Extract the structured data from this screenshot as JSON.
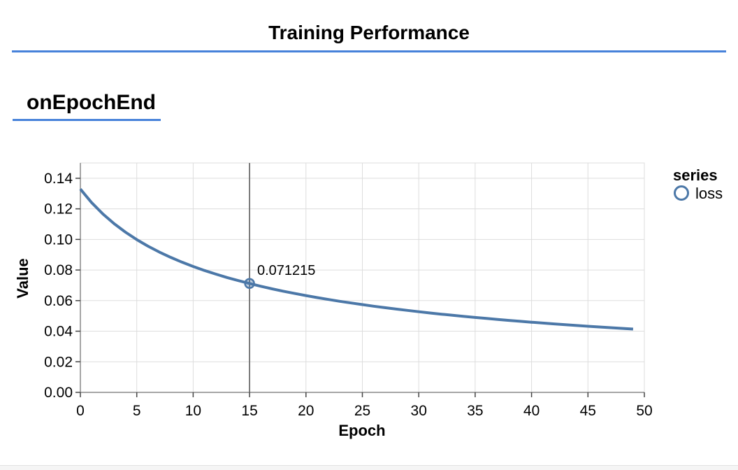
{
  "header": {
    "title": "Training Performance"
  },
  "section": {
    "title": "onEpochEnd"
  },
  "colors": {
    "accent_rule": "#4782da",
    "line": "#4c78a8",
    "grid": "#dddddd",
    "axis_domain": "#888888",
    "tick": "#444444",
    "crosshair": "#6e6e6e",
    "text": "#000000",
    "bottom_strip_bg": "#f5f5f5",
    "bottom_strip_border": "#e2e2e2"
  },
  "chart_data": {
    "type": "line",
    "title": "",
    "xlabel": "Epoch",
    "ylabel": "Value",
    "xlim": [
      0,
      50
    ],
    "ylim": [
      0,
      0.15
    ],
    "x_ticks": [
      0,
      5,
      10,
      15,
      20,
      25,
      30,
      35,
      40,
      45,
      50
    ],
    "y_ticks": [
      0,
      0.02,
      0.04,
      0.06,
      0.08,
      0.1,
      0.12,
      0.14
    ],
    "y_decimals": 2,
    "grid": true,
    "legend": {
      "title": "series",
      "position": "right",
      "entries": [
        {
          "label": "loss",
          "color": "#4c78a8",
          "symbol": "circle"
        }
      ]
    },
    "series": [
      {
        "name": "loss",
        "x": [
          0,
          1,
          2,
          3,
          4,
          5,
          6,
          7,
          8,
          9,
          10,
          11,
          12,
          13,
          14,
          15,
          16,
          17,
          18,
          19,
          20,
          21,
          22,
          23,
          24,
          25,
          26,
          27,
          28,
          29,
          30,
          31,
          32,
          33,
          34,
          35,
          36,
          37,
          38,
          39,
          40,
          41,
          42,
          43,
          44,
          45,
          46,
          47,
          48,
          49
        ],
        "values": [
          0.132953,
          0.124087,
          0.116618,
          0.110243,
          0.104711,
          0.099862,
          0.095573,
          0.091744,
          0.088292,
          0.085171,
          0.082318,
          0.079718,
          0.077331,
          0.075113,
          0.073058,
          0.071215,
          0.069371,
          0.067698,
          0.066142,
          0.064671,
          0.063283,
          0.061967,
          0.060731,
          0.059549,
          0.058437,
          0.057372,
          0.05636,
          0.055393,
          0.054466,
          0.05358,
          0.052737,
          0.051923,
          0.051146,
          0.050399,
          0.049681,
          0.048984,
          0.04832,
          0.047674,
          0.047052,
          0.04645,
          0.045868,
          0.045303,
          0.044757,
          0.044227,
          0.043715,
          0.043228,
          0.042749,
          0.042283,
          0.041832,
          0.041393
        ]
      }
    ],
    "highlight": {
      "x": 15,
      "value": 0.071215,
      "label": "0.071215"
    }
  }
}
